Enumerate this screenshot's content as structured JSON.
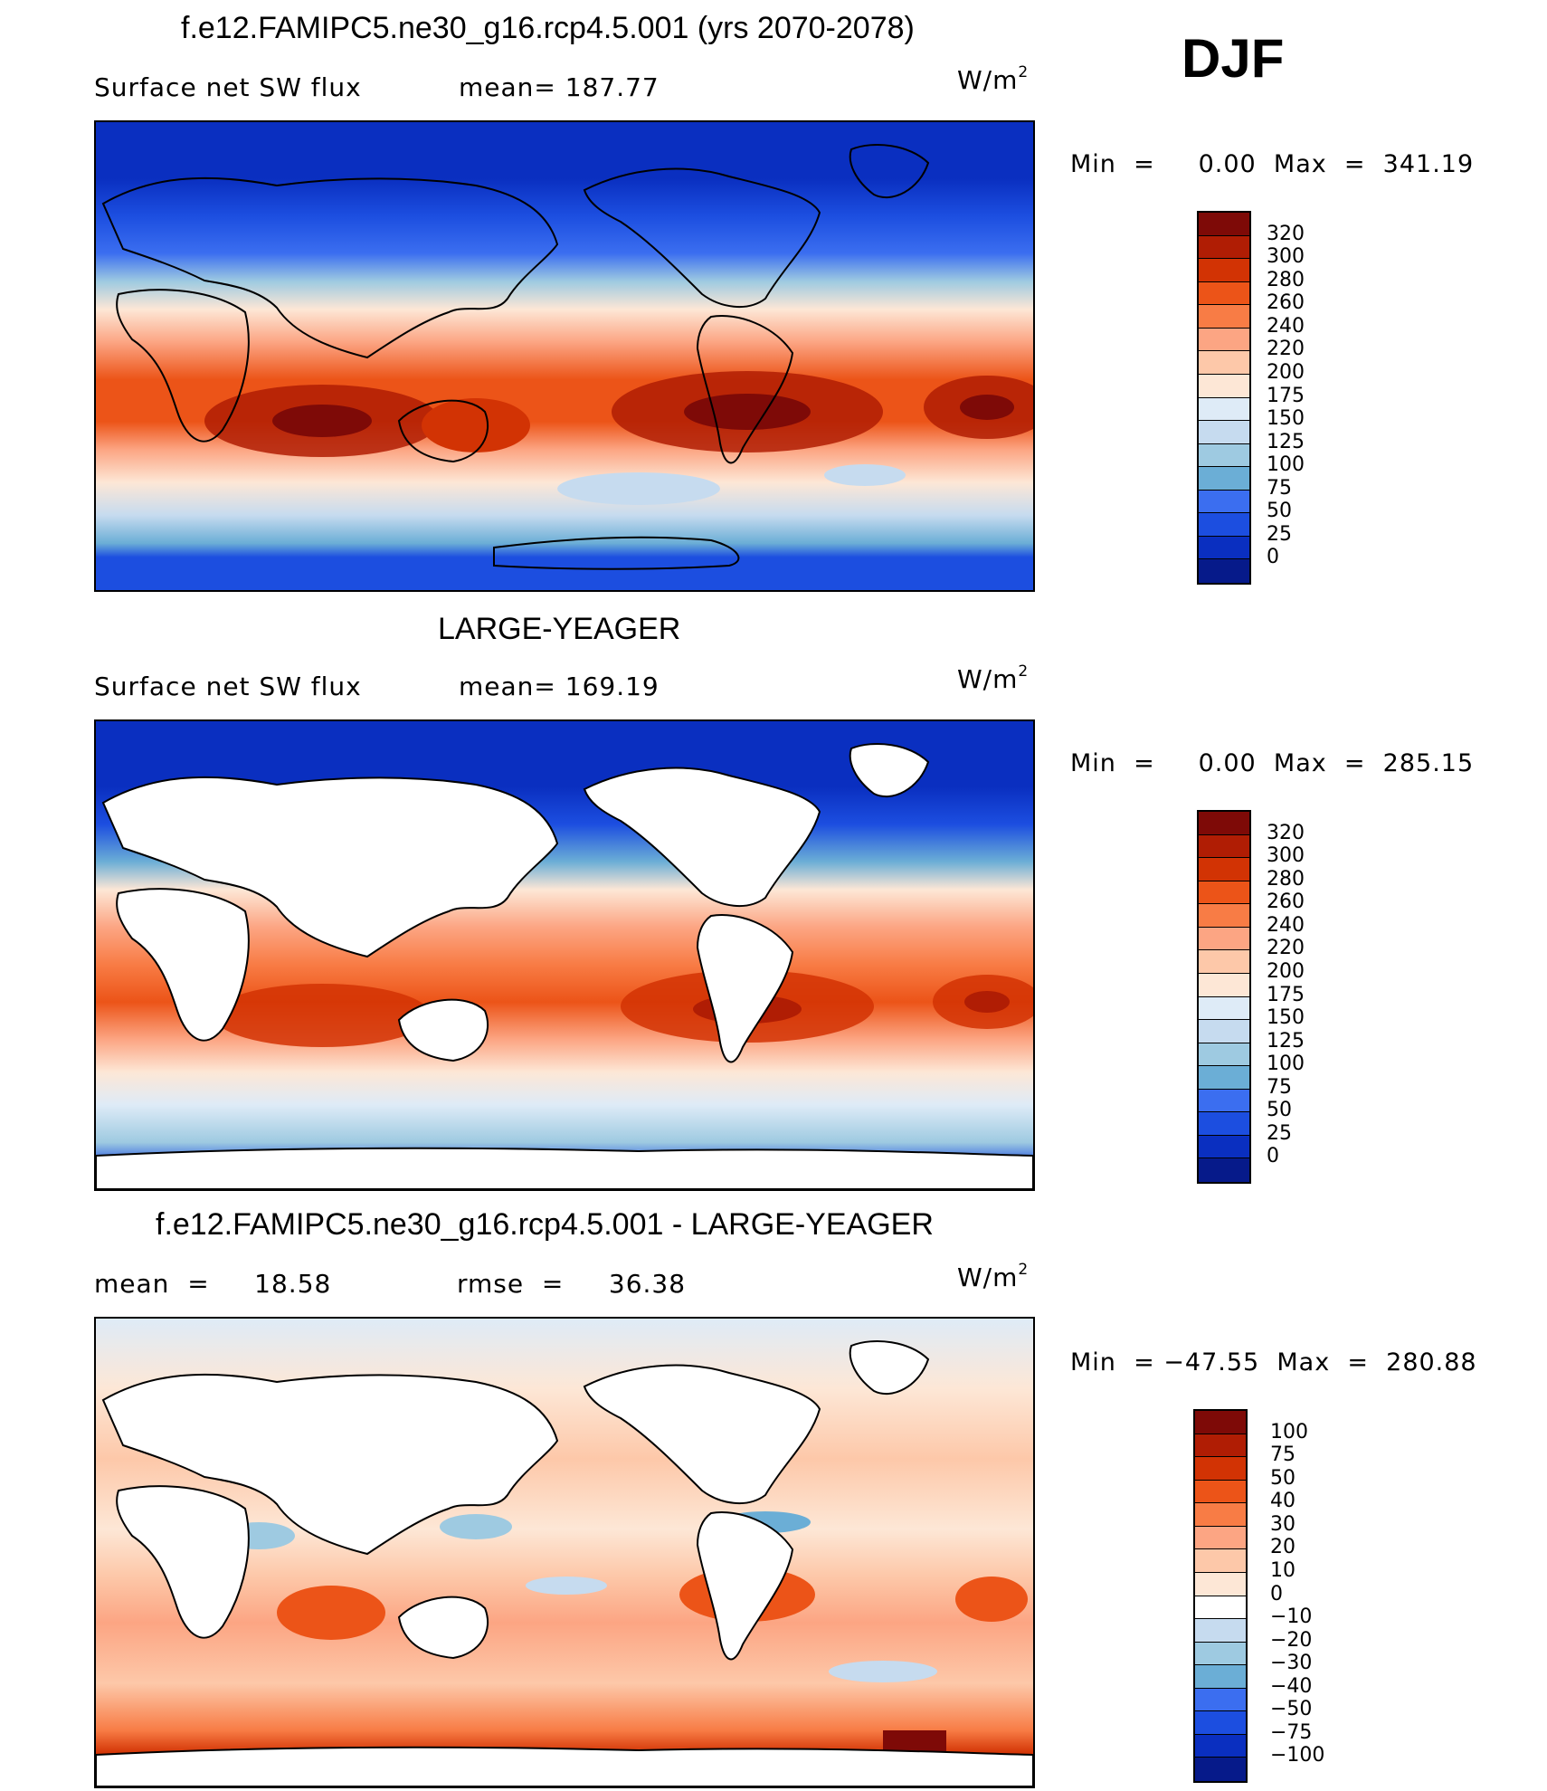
{
  "header": {
    "title": "f.e12.FAMIPC5.ne30_g16.rcp4.5.001 (yrs 2070-2078)",
    "season": "DJF"
  },
  "panels": [
    {
      "id": "model",
      "title": "f.e12.FAMIPC5.ne30_g16.rcp4.5.001 (yrs 2070-2078)",
      "left_label": "Surface net SW flux",
      "center_label": "mean=  187.77",
      "units": "W/m",
      "units_sup": "2",
      "minmax": "Min  =     0.00  Max  =  341.19",
      "colorbar_labels": [
        "320",
        "300",
        "280",
        "260",
        "240",
        "220",
        "200",
        "175",
        "150",
        "125",
        "100",
        "75",
        "50",
        "25",
        "0"
      ],
      "colorbar_colors": [
        "#7e0a07",
        "#b01d04",
        "#d23304",
        "#ec5418",
        "#f87c45",
        "#fca583",
        "#fdc8a9",
        "#fde7d6",
        "#deebf7",
        "#c6dbef",
        "#9ecae1",
        "#6baed6",
        "#3b6ef0",
        "#1c4ee0",
        "#0a2fc0",
        "#061a8a"
      ]
    },
    {
      "id": "obs",
      "title": "LARGE-YEAGER",
      "left_label": "Surface net SW flux",
      "center_label": "mean=  169.19",
      "units": "W/m",
      "units_sup": "2",
      "minmax": "Min  =     0.00  Max  =  285.15",
      "colorbar_labels": [
        "320",
        "300",
        "280",
        "260",
        "240",
        "220",
        "200",
        "175",
        "150",
        "125",
        "100",
        "75",
        "50",
        "25",
        "0"
      ],
      "colorbar_colors": [
        "#7e0a07",
        "#b01d04",
        "#d23304",
        "#ec5418",
        "#f87c45",
        "#fca583",
        "#fdc8a9",
        "#fde7d6",
        "#deebf7",
        "#c6dbef",
        "#9ecae1",
        "#6baed6",
        "#3b6ef0",
        "#1c4ee0",
        "#0a2fc0",
        "#061a8a"
      ]
    },
    {
      "id": "diff",
      "title": "f.e12.FAMIPC5.ne30_g16.rcp4.5.001 - LARGE-YEAGER",
      "left_label": "mean  =     18.58",
      "center_label": "rmse  =     36.38",
      "units": "W/m",
      "units_sup": "2",
      "minmax": "Min  = −47.55  Max  =  280.88",
      "colorbar_labels": [
        "100",
        "75",
        "50",
        "40",
        "30",
        "20",
        "10",
        "0",
        "−10",
        "−20",
        "−30",
        "−40",
        "−50",
        "−75",
        "−100"
      ],
      "colorbar_colors": [
        "#7e0a07",
        "#b01d04",
        "#d23304",
        "#ec5418",
        "#f87c45",
        "#fca583",
        "#fdc8a9",
        "#fde7d6",
        "#ffffff",
        "#c6dbef",
        "#9ecae1",
        "#6baed6",
        "#3b6ef0",
        "#1c4ee0",
        "#0a2fc0",
        "#061a8a"
      ]
    }
  ]
}
